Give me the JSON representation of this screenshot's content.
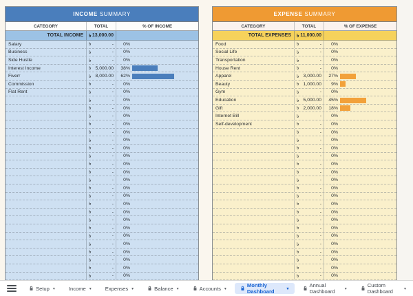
{
  "currency_symbol": "৳",
  "income_table": {
    "title_bold": "INCOME",
    "title_rest": "SUMMARY",
    "columns": [
      "CATEGORY",
      "TOTAL",
      "% OF INCOME"
    ],
    "total_label": "TOTAL INCOME",
    "total_value": "13,000.00",
    "rows": [
      {
        "category": "Salary",
        "amount": "-",
        "pct": "0%",
        "pct_value": 0
      },
      {
        "category": "Business",
        "amount": "-",
        "pct": "0%",
        "pct_value": 0
      },
      {
        "category": "Side Hustle",
        "amount": "-",
        "pct": "0%",
        "pct_value": 0
      },
      {
        "category": "Interest Income",
        "amount": "5,000.00",
        "pct": "38%",
        "pct_value": 38
      },
      {
        "category": "Fiverr",
        "amount": "8,000.00",
        "pct": "62%",
        "pct_value": 62
      },
      {
        "category": "Commission",
        "amount": "-",
        "pct": "0%",
        "pct_value": 0
      },
      {
        "category": "Flat Rent",
        "amount": "-",
        "pct": "0%",
        "pct_value": 0
      }
    ],
    "empty_rows": 24,
    "empty_amount": "-",
    "empty_pct": "0%",
    "colors": {
      "title_bg": "#4a7ebc",
      "total_bg": "#9cc2e5",
      "row_bg": "#cee0f2",
      "head_bg": "#fdfdfb",
      "bar": "#4a7ebc"
    }
  },
  "expense_table": {
    "title_bold": "EXPENSE",
    "title_rest": "SUMMARY",
    "columns": [
      "CATEGORY",
      "TOTAL",
      "% OF EXPENSE"
    ],
    "total_label": "TOTAL EXPENSES",
    "total_value": "11,000.00",
    "rows": [
      {
        "category": "Food",
        "amount": "-",
        "pct": "0%",
        "pct_value": 0
      },
      {
        "category": "Social Life",
        "amount": "-",
        "pct": "0%",
        "pct_value": 0
      },
      {
        "category": "Transportation",
        "amount": "-",
        "pct": "0%",
        "pct_value": 0
      },
      {
        "category": "House Rent",
        "amount": "-",
        "pct": "0%",
        "pct_value": 0
      },
      {
        "category": "Apparel",
        "amount": "3,000.00",
        "pct": "27%",
        "pct_value": 27
      },
      {
        "category": "Beauty",
        "amount": "1,000.00",
        "pct": "9%",
        "pct_value": 9
      },
      {
        "category": "Gym",
        "amount": "-",
        "pct": "0%",
        "pct_value": 0
      },
      {
        "category": "Education",
        "amount": "5,000.00",
        "pct": "45%",
        "pct_value": 45
      },
      {
        "category": "Gift",
        "amount": "2,000.00",
        "pct": "18%",
        "pct_value": 18
      },
      {
        "category": "Internet Bill",
        "amount": "-",
        "pct": "0%",
        "pct_value": 0
      },
      {
        "category": "Self-development",
        "amount": "-",
        "pct": "0%",
        "pct_value": 0
      }
    ],
    "empty_rows": 20,
    "empty_amount": "-",
    "empty_pct": "0%",
    "colors": {
      "title_bg": "#ef9a33",
      "total_bg": "#f6d25b",
      "row_bg": "#faf0cb",
      "head_bg": "#fbf3ee",
      "bar": "#f2a13a"
    }
  },
  "tab_bar": {
    "tabs": [
      {
        "label": "Setup",
        "locked": true,
        "active": false
      },
      {
        "label": "Income",
        "locked": false,
        "active": false
      },
      {
        "label": "Expenses",
        "locked": false,
        "active": false
      },
      {
        "label": "Balance",
        "locked": true,
        "active": false
      },
      {
        "label": "Accounts",
        "locked": true,
        "active": false
      },
      {
        "label": "Monthly Dashboard",
        "locked": true,
        "active": true
      },
      {
        "label": "Annual Dashboard",
        "locked": true,
        "active": false
      },
      {
        "label": "Custom Dashboard",
        "locked": true,
        "active": false
      }
    ],
    "dropdown_arrow": "▾"
  }
}
